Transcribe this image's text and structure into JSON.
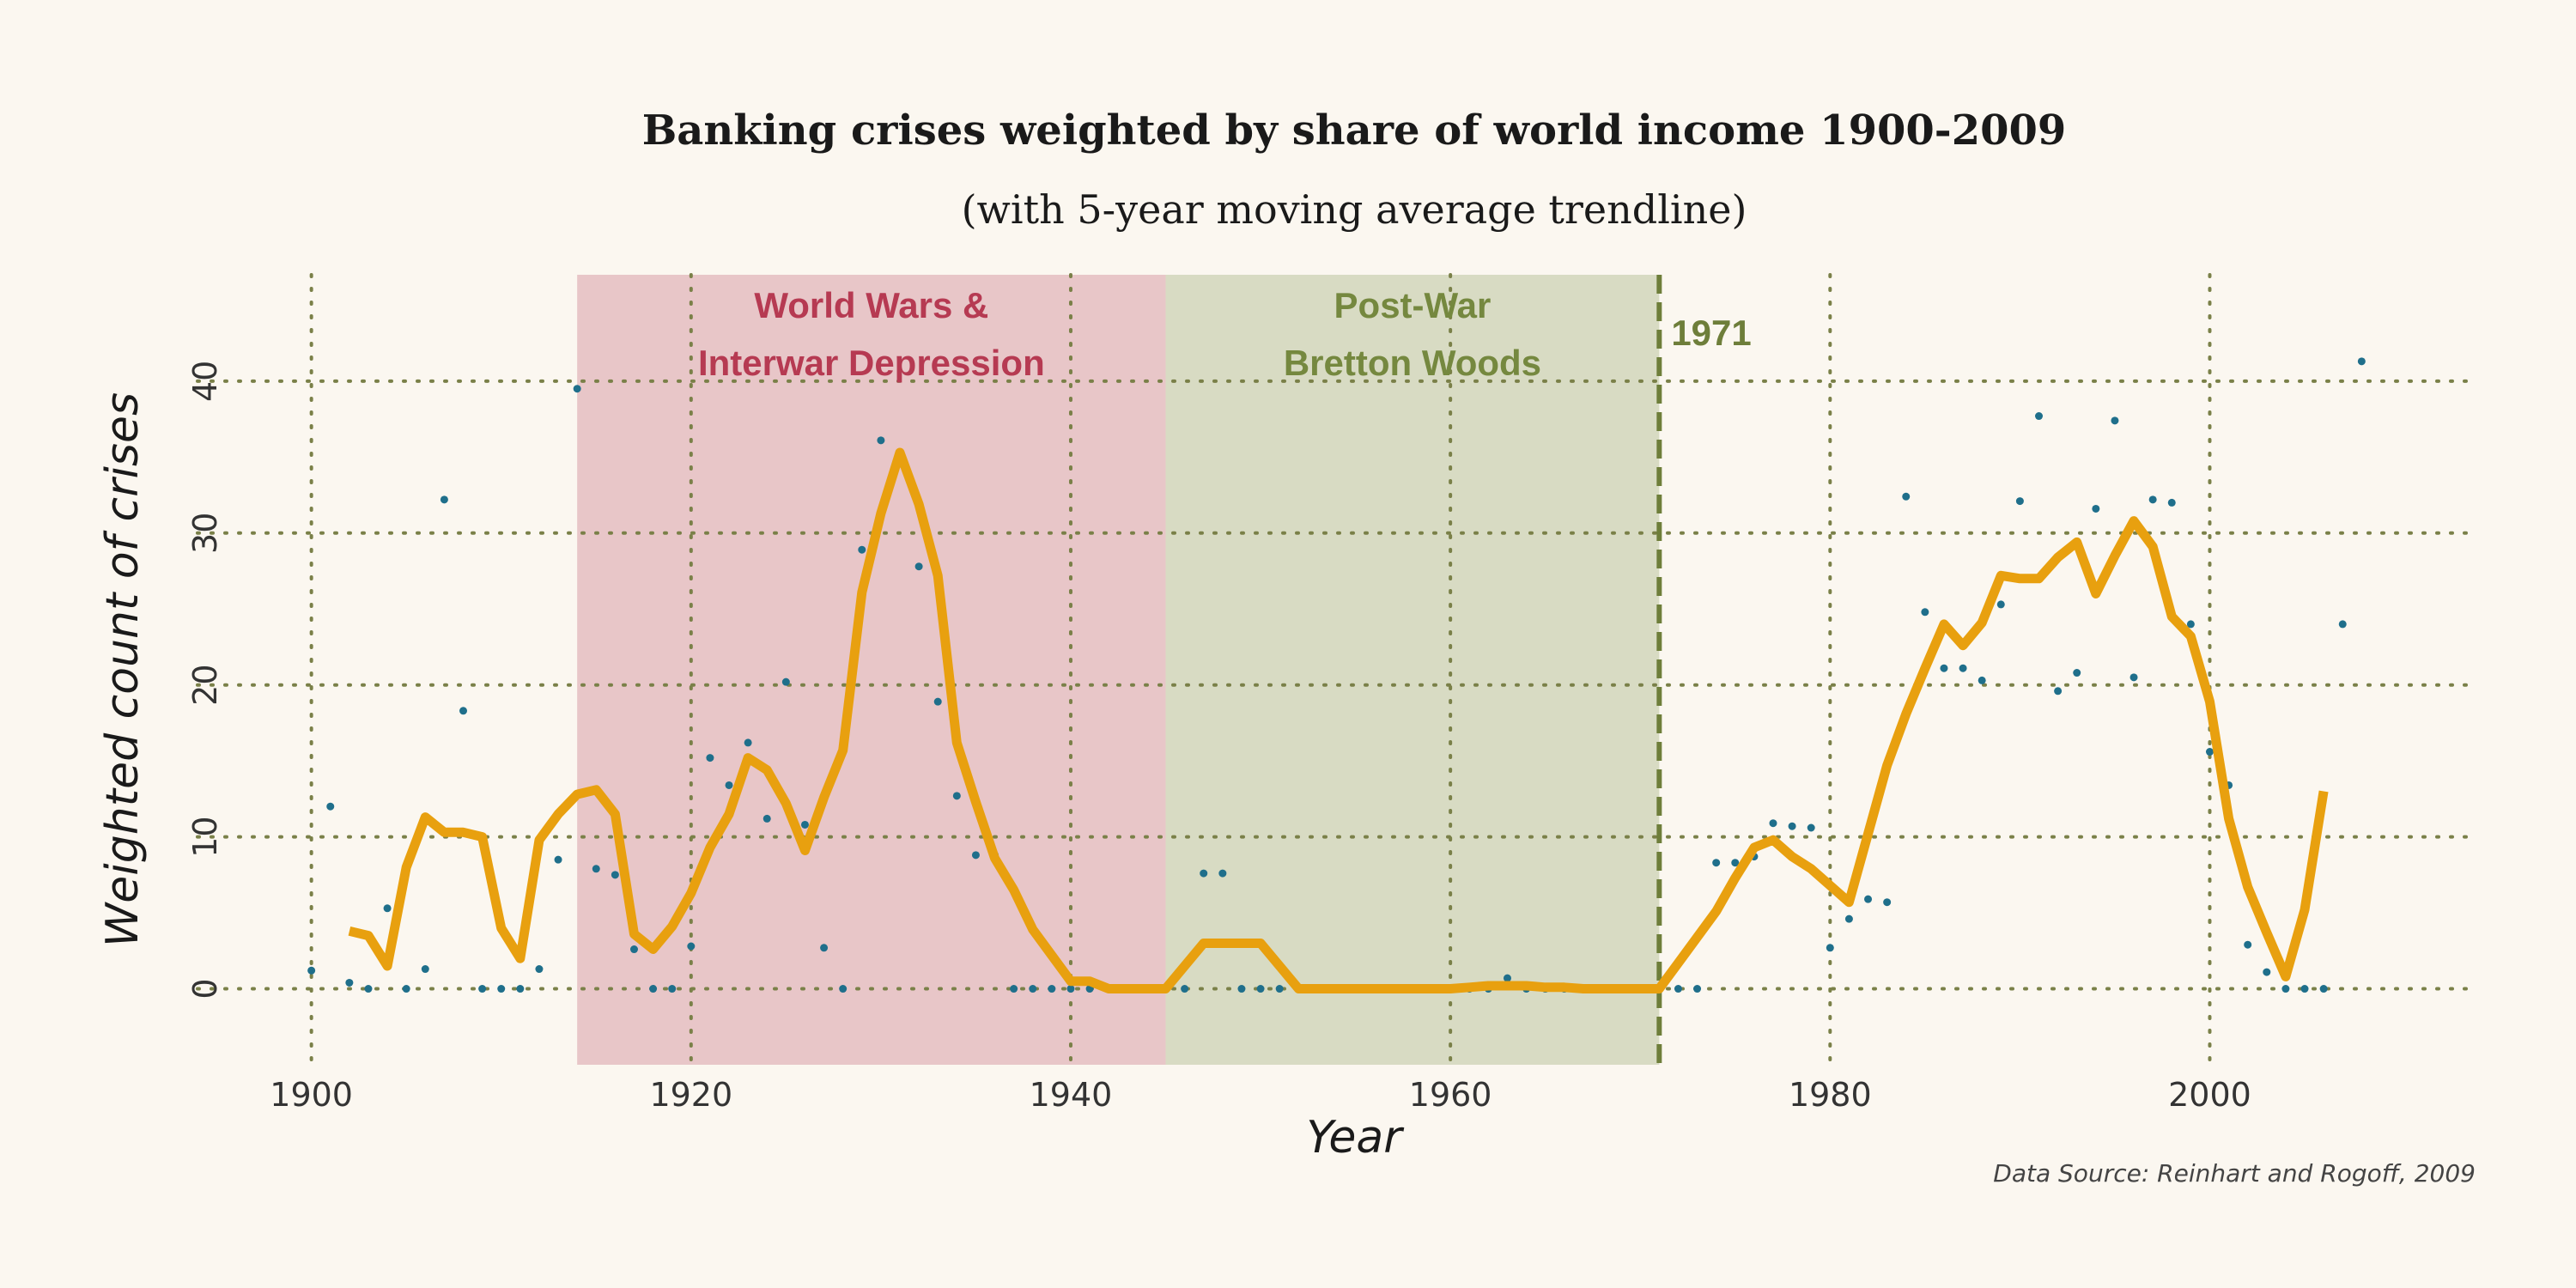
{
  "chart_data": {
    "type": "line",
    "title": "Banking crises weighted by share of world income 1900-2009",
    "subtitle": "(with 5-year moving average trendline)",
    "xlabel": "Year",
    "ylabel": "Weighted count of crises",
    "source": "Data Source: Reinhart and Rogoff, 2009",
    "xlim": [
      1894,
      2014
    ],
    "ylim": [
      -5,
      47
    ],
    "xticks": [
      1900,
      1920,
      1940,
      1960,
      1980,
      2000
    ],
    "yticks": [
      0,
      10,
      20,
      30,
      40
    ],
    "grid": true,
    "colors": {
      "background": "#fbf7f0",
      "trendline": "#e8a00f",
      "points": "#1f6f8b",
      "grid": "#7a8048",
      "ww_region": "#e8c6c8",
      "ww_text": "#b63a52",
      "bw_region": "#d8dbc3",
      "bw_text": "#75883f",
      "vline": "#6e7e3a"
    },
    "regions": [
      {
        "label_line1": "World Wars &",
        "label_line2": "Interwar Depression",
        "start": 1914,
        "end": 1945
      },
      {
        "label_line1": "Post-War",
        "label_line2": "Bretton Woods",
        "start": 1945,
        "end": 1971
      }
    ],
    "vline": {
      "x": 1971,
      "label": "1971"
    },
    "series": [
      {
        "kind": "points",
        "x": [
          1900,
          1901,
          1902,
          1903,
          1904,
          1905,
          1906,
          1907,
          1908,
          1909,
          1910,
          1911,
          1912,
          1913,
          1914,
          1915,
          1916,
          1917,
          1918,
          1919,
          1920,
          1921,
          1922,
          1923,
          1924,
          1925,
          1926,
          1927,
          1928,
          1929,
          1930,
          1931,
          1932,
          1933,
          1934,
          1935,
          1936,
          1937,
          1938,
          1939,
          1940,
          1941,
          1942,
          1943,
          1944,
          1945,
          1946,
          1947,
          1948,
          1949,
          1950,
          1951,
          1952,
          1953,
          1954,
          1955,
          1956,
          1957,
          1958,
          1959,
          1960,
          1961,
          1962,
          1963,
          1964,
          1965,
          1966,
          1967,
          1968,
          1969,
          1970,
          1971,
          1972,
          1973,
          1974,
          1975,
          1976,
          1977,
          1978,
          1979,
          1980,
          1981,
          1982,
          1983,
          1984,
          1985,
          1986,
          1987,
          1988,
          1989,
          1990,
          1991,
          1992,
          1993,
          1994,
          1995,
          1996,
          1997,
          1998,
          1999,
          2000,
          2001,
          2002,
          2003,
          2004,
          2005,
          2006,
          2007,
          2008
        ],
        "y": [
          1.2,
          12.0,
          0.4,
          0,
          5.3,
          0,
          1.3,
          32.2,
          18.3,
          0,
          0,
          0,
          1.3,
          8.5,
          39.5,
          7.9,
          7.5,
          2.6,
          0,
          0,
          2.8,
          15.2,
          13.4,
          16.2,
          11.2,
          20.2,
          10.8,
          2.7,
          0,
          28.9,
          36.1,
          35.0,
          27.8,
          18.9,
          12.7,
          8.8,
          8.8,
          0,
          0,
          0,
          0,
          0,
          0,
          0,
          0,
          0,
          0,
          7.6,
          7.6,
          0,
          0,
          0,
          0,
          0,
          0,
          0,
          0,
          0,
          0,
          0,
          0,
          0,
          0,
          0.7,
          0,
          0,
          0,
          0,
          0,
          0,
          0,
          0,
          0,
          0,
          8.3,
          8.3,
          8.7,
          10.9,
          10.7,
          10.6,
          2.7,
          4.6,
          5.9,
          5.7,
          32.4,
          24.8,
          21.1,
          21.1,
          20.3,
          25.3,
          32.1,
          37.7,
          19.6,
          20.8,
          31.6,
          37.4,
          20.5,
          32.2,
          32.0,
          24.0,
          15.6,
          13.4,
          2.9,
          1.1,
          0,
          0,
          0,
          24.0,
          41.3
        ]
      },
      {
        "kind": "trendline",
        "name": "5-year moving average",
        "x": [
          1902,
          1903,
          1904,
          1905,
          1906,
          1907,
          1908,
          1909,
          1910,
          1911,
          1912,
          1913,
          1914,
          1915,
          1916,
          1917,
          1918,
          1919,
          1920,
          1921,
          1922,
          1923,
          1924,
          1925,
          1926,
          1927,
          1928,
          1929,
          1930,
          1931,
          1932,
          1933,
          1934,
          1935,
          1936,
          1937,
          1938,
          1939,
          1940,
          1941,
          1942,
          1943,
          1944,
          1945,
          1946,
          1947,
          1948,
          1949,
          1950,
          1951,
          1952,
          1953,
          1954,
          1955,
          1956,
          1957,
          1958,
          1959,
          1960,
          1961,
          1962,
          1963,
          1964,
          1965,
          1966,
          1967,
          1968,
          1969,
          1970,
          1971,
          1972,
          1973,
          1974,
          1975,
          1976,
          1977,
          1978,
          1979,
          1980,
          1981,
          1982,
          1983,
          1984,
          1985,
          1986,
          1987,
          1988,
          1989,
          1990,
          1991,
          1992,
          1993,
          1994,
          1995,
          1996,
          1997,
          1998,
          1999,
          2000,
          2001,
          2002,
          2003,
          2004,
          2005,
          2006
        ],
        "y": [
          3.8,
          3.5,
          1.5,
          8,
          11.3,
          10.3,
          10.3,
          10,
          4,
          2,
          9.8,
          11.5,
          12.8,
          13.1,
          11.5,
          3.6,
          2.6,
          4.1,
          6.3,
          9.3,
          11.5,
          15.2,
          14.4,
          12.2,
          9.1,
          12.6,
          15.7,
          26.1,
          31.3,
          35.3,
          31.9,
          27.2,
          16.2,
          12.3,
          8.6,
          6.5,
          3.9,
          2.2,
          0.5,
          0.5,
          0,
          0,
          0,
          0,
          1.5,
          3,
          3,
          3,
          3,
          1.5,
          0,
          0,
          0,
          0,
          0,
          0,
          0,
          0,
          0,
          0.1,
          0.2,
          0.2,
          0.2,
          0.1,
          0.1,
          0,
          0,
          0,
          0,
          0,
          1.7,
          3.4,
          5.1,
          7.3,
          9.3,
          9.8,
          8.7,
          7.9,
          6.8,
          5.7,
          10.2,
          14.7,
          18.1,
          21.1,
          24,
          22.6,
          24.1,
          27.2,
          27,
          27,
          28.4,
          29.4,
          26,
          28.5,
          30.8,
          29.1,
          24.5,
          23.2,
          18.9,
          11.2,
          6.7,
          3.7,
          0.8,
          5.2,
          13
        ]
      }
    ]
  }
}
